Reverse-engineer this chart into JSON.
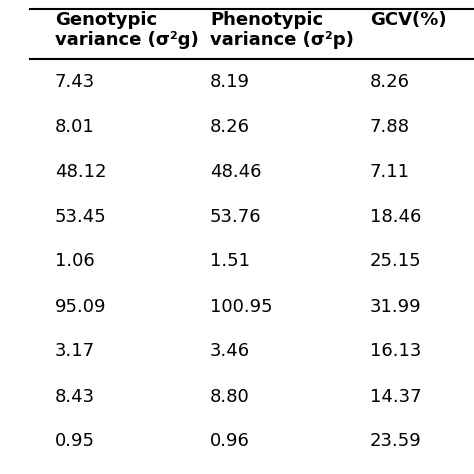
{
  "col1_header_line1": "Genotypic",
  "col1_header_line2": "variance (σ²g)",
  "col2_header_line1": "Phenotypic",
  "col2_header_line2": "variance (σ²p)",
  "col3_header": "GCV(%)",
  "col1": [
    "7.43",
    "8.01",
    "48.12",
    "53.45",
    "1.06",
    "95.09",
    "3.17",
    "8.43",
    "0.95"
  ],
  "col2": [
    "8.19",
    "8.26",
    "48.46",
    "53.76",
    "1.51",
    "100.95",
    "3.46",
    "8.80",
    "0.96"
  ],
  "col3": [
    "8.26",
    "7.88",
    "7.11",
    "18.46",
    "25.15",
    "31.99",
    "16.13",
    "14.37",
    "23.59"
  ],
  "line_color": "#000000",
  "font_size": 13,
  "header_font_size": 13
}
